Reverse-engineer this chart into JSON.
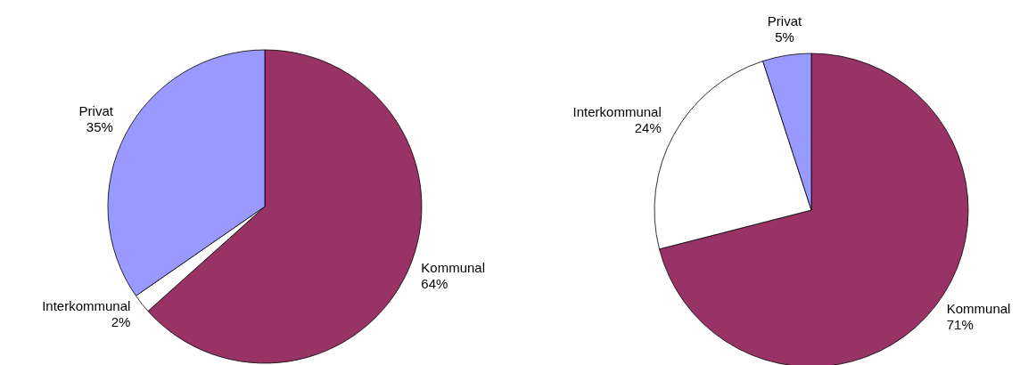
{
  "chart_data": [
    {
      "type": "pie",
      "categories": [
        "Kommunal",
        "Interkommunal",
        "Privat"
      ],
      "values": [
        64,
        2,
        35
      ],
      "colors": [
        "#993366",
        "#ffffff",
        "#9999ff"
      ],
      "value_labels": [
        "64%",
        "2%",
        "35%"
      ]
    },
    {
      "type": "pie",
      "categories": [
        "Kommunal",
        "Interkommunal",
        "Privat"
      ],
      "values": [
        71,
        24,
        5
      ],
      "colors": [
        "#993366",
        "#ffffff",
        "#9999ff"
      ],
      "value_labels": [
        "71%",
        "24%",
        "5%"
      ]
    }
  ]
}
